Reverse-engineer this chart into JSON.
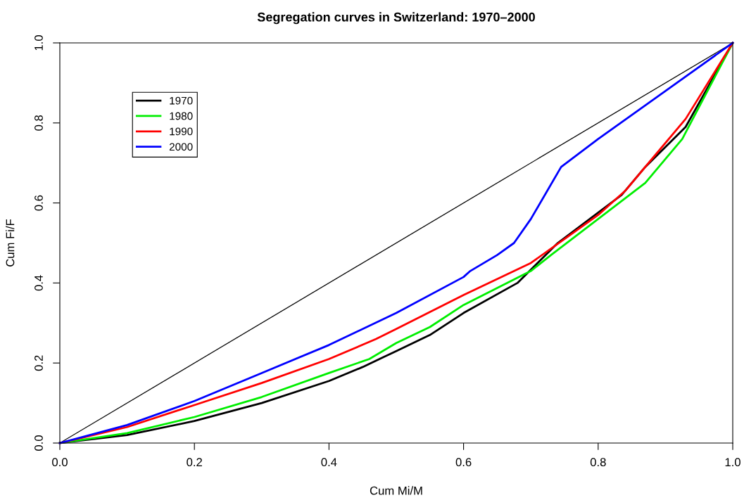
{
  "chart_data": {
    "type": "line",
    "title": "Segregation curves in Switzerland: 1970–2000",
    "xlabel": "Cum Mi/M",
    "ylabel": "Cum Fi/F",
    "xlim": [
      0,
      1
    ],
    "ylim": [
      0,
      1
    ],
    "xticks": [
      {
        "value": 0,
        "label": "0.0"
      },
      0.2,
      0.4,
      0.6,
      0.8,
      {
        "value": 1,
        "label": "1.0"
      }
    ],
    "yticks": [
      {
        "value": 0,
        "label": "0.0"
      },
      0.2,
      0.4,
      0.6,
      0.8,
      {
        "value": 1,
        "label": "1.0"
      }
    ],
    "grid": false,
    "legend": "top left",
    "marker": "none",
    "line_style": "solid",
    "series": [
      {
        "x": [
          0,
          1
        ],
        "values": [
          0,
          1
        ],
        "color": "#000000"
      },
      {
        "name": "1970",
        "color": "#000000",
        "x": [
          0,
          0.1,
          0.2,
          0.3,
          0.4,
          0.45,
          0.5,
          0.55,
          0.6,
          0.68,
          0.74,
          0.835,
          0.87,
          0.93,
          1.0
        ],
        "values": [
          0,
          0.02,
          0.055,
          0.1,
          0.155,
          0.19,
          0.23,
          0.27,
          0.325,
          0.4,
          0.5,
          0.62,
          0.69,
          0.79,
          1.0
        ]
      },
      {
        "name": "1980",
        "color": "#00ee00",
        "x": [
          0,
          0.1,
          0.2,
          0.3,
          0.4,
          0.46,
          0.5,
          0.55,
          0.6,
          0.7,
          0.73,
          0.8,
          0.87,
          0.925,
          1.0
        ],
        "values": [
          0,
          0.025,
          0.065,
          0.115,
          0.175,
          0.21,
          0.25,
          0.29,
          0.345,
          0.43,
          0.47,
          0.56,
          0.65,
          0.76,
          1.0
        ]
      },
      {
        "name": "1990",
        "color": "#ff0000",
        "x": [
          0,
          0.1,
          0.2,
          0.3,
          0.4,
          0.47,
          0.5,
          0.6,
          0.7,
          0.75,
          0.8,
          0.84,
          0.88,
          0.93,
          1.0
        ],
        "values": [
          0,
          0.04,
          0.095,
          0.15,
          0.21,
          0.26,
          0.285,
          0.37,
          0.45,
          0.51,
          0.57,
          0.63,
          0.71,
          0.81,
          1.0
        ]
      },
      {
        "name": "2000",
        "color": "#0000ff",
        "x": [
          0,
          0.1,
          0.2,
          0.3,
          0.4,
          0.5,
          0.6,
          0.61,
          0.65,
          0.675,
          0.7,
          0.745,
          0.8,
          0.9,
          1.0
        ],
        "values": [
          0,
          0.045,
          0.105,
          0.175,
          0.245,
          0.325,
          0.415,
          0.43,
          0.47,
          0.5,
          0.56,
          0.69,
          0.76,
          0.88,
          1.0
        ]
      }
    ]
  }
}
